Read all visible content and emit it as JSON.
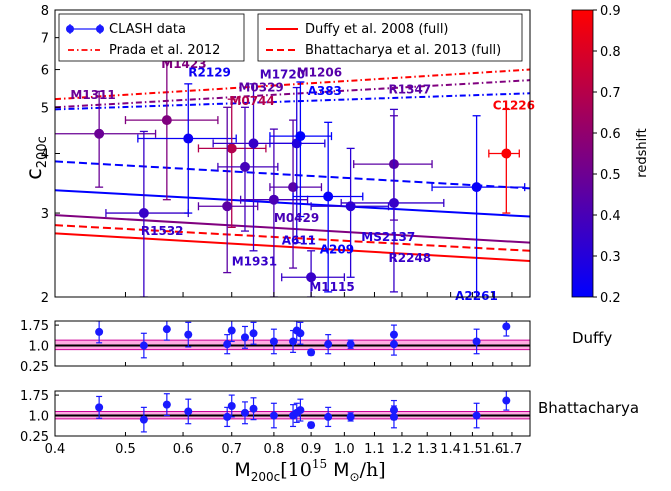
{
  "chart_data": {
    "type": "scatter",
    "x_scale": "log",
    "y_scale": "log",
    "xlim": [
      0.4,
      1.8
    ],
    "main_ylim": [
      2,
      8
    ],
    "xlabel": "M_200c [10^15 M_⊙/h]",
    "xlabel_main": "M",
    "xlabel_sub": "200c",
    "xlabel_unit_pre": "[10",
    "xlabel_unit_exp": "15",
    "xlabel_unit_m": " M",
    "xlabel_unit_sym": "⊙",
    "xlabel_unit_post": "/h]",
    "ylabel_main": "c",
    "ylabel_sub": "200c",
    "x_ticks": [
      "0.4",
      "0.5",
      "0.6",
      "0.7",
      "0.8",
      "0.9",
      "1.0",
      "1.1",
      "1.2",
      "1.3",
      "1.4",
      "1.5",
      "1.6",
      "1.7"
    ],
    "main_y_ticks": [
      "2",
      "3",
      "4",
      "5",
      "6",
      "7",
      "8"
    ],
    "colorbar": {
      "label": "redshift",
      "range": [
        0.2,
        0.9
      ],
      "colormap": [
        "#0000ff",
        "#ff0000"
      ],
      "ticks": [
        "0.2",
        "0.3",
        "0.4",
        "0.5",
        "0.6",
        "0.7",
        "0.8",
        "0.9"
      ]
    },
    "legend": {
      "placement": "top",
      "entries": [
        {
          "label": "CLASH data",
          "style": "marker-errorbar",
          "color": "#1a1aff"
        },
        {
          "label": "Duffy et al. 2008 (full)",
          "style": "solid",
          "color": "#ff0000"
        },
        {
          "label": "Prada et al. 2012",
          "style": "dashdot",
          "color": "#ff0000"
        },
        {
          "label": "Bhattacharya et al. 2013 (full)",
          "style": "dashed",
          "color": "#ff0000"
        }
      ]
    },
    "clusters": [
      {
        "name": "M1311",
        "x": 0.46,
        "y": 4.4,
        "xerr": [
          0.07,
          0.09
        ],
        "yerr": [
          1.0,
          1.0
        ],
        "z": 0.49
      },
      {
        "name": "R1532",
        "x": 0.53,
        "y": 3.0,
        "xerr": [
          0.06,
          0.08
        ],
        "yerr": [
          1.0,
          1.45
        ],
        "z": 0.35
      },
      {
        "name": "M1423",
        "x": 0.57,
        "y": 4.7,
        "xerr": [
          0.07,
          0.1
        ],
        "yerr": [
          1.5,
          1.55
        ],
        "z": 0.55
      },
      {
        "name": "R2129",
        "x": 0.61,
        "y": 4.3,
        "xerr": [
          0.09,
          0.1
        ],
        "yerr": [
          1.3,
          1.3
        ],
        "z": 0.23
      },
      {
        "name": "M0744",
        "x": 0.7,
        "y": 4.1,
        "xerr": [
          0.07,
          0.08
        ],
        "yerr": [
          1.3,
          1.1
        ],
        "z": 0.69
      },
      {
        "name": "M0329",
        "x": 0.69,
        "y": 3.1,
        "xerr": [
          0.06,
          0.07
        ],
        "yerr": [
          0.85,
          1.9
        ],
        "z": 0.45
      },
      {
        "name": "M1720",
        "x": 0.73,
        "y": 3.75,
        "xerr": [
          0.06,
          0.08
        ],
        "yerr": [
          1.0,
          1.25
        ],
        "z": 0.39
      },
      {
        "name": "M1931",
        "x": 0.75,
        "y": 4.2,
        "xerr": [
          0.09,
          0.1
        ],
        "yerr": [
          1.7,
          1.4
        ],
        "z": 0.35
      },
      {
        "name": "M0429",
        "x": 0.8,
        "y": 3.2,
        "xerr": [
          0.08,
          0.09
        ],
        "yerr": [
          1.2,
          1.3
        ],
        "z": 0.4
      },
      {
        "name": "M1206",
        "x": 0.85,
        "y": 3.4,
        "xerr": [
          0.06,
          0.08
        ],
        "yerr": [
          1.1,
          1.3
        ],
        "z": 0.44
      },
      {
        "name": "A611",
        "x": 0.86,
        "y": 4.2,
        "xerr": [
          0.07,
          0.08
        ],
        "yerr": [
          1.6,
          1.3
        ],
        "z": 0.29
      },
      {
        "name": "A383",
        "x": 0.87,
        "y": 4.35,
        "xerr": [
          0.08,
          0.09
        ],
        "yerr": [
          1.4,
          1.3
        ],
        "z": 0.19
      },
      {
        "name": "M1115",
        "x": 0.9,
        "y": 2.2,
        "xerr": [
          0.08,
          0.1
        ],
        "yerr": [
          0.2,
          0.3
        ],
        "z": 0.35
      },
      {
        "name": "A209",
        "x": 0.95,
        "y": 3.25,
        "xerr": [
          0.1,
          0.11
        ],
        "yerr": [
          1.2,
          1.4
        ],
        "z": 0.21
      },
      {
        "name": "MS2137",
        "x": 1.02,
        "y": 3.1,
        "xerr": [
          0.12,
          0.13
        ],
        "yerr": [
          0.9,
          1.0
        ],
        "z": 0.31
      },
      {
        "name": "R1347",
        "x": 1.17,
        "y": 3.8,
        "xerr": [
          0.14,
          0.15
        ],
        "yerr": [
          0.9,
          1.0
        ],
        "z": 0.45
      },
      {
        "name": "R2248",
        "x": 1.17,
        "y": 3.15,
        "xerr": [
          0.18,
          0.2
        ],
        "yerr": [
          1.1,
          1.8
        ],
        "z": 0.35
      },
      {
        "name": "A2261",
        "x": 1.52,
        "y": 3.4,
        "xerr": [
          0.2,
          0.25
        ],
        "yerr": [
          1.4,
          1.4
        ],
        "z": 0.22
      },
      {
        "name": "C1226",
        "x": 1.67,
        "y": 4.0,
        "xerr": [
          0.09,
          0.07
        ],
        "yerr": [
          1.0,
          0.95
        ],
        "z": 0.89
      }
    ],
    "label_offsets_note": "",
    "label_positions": [
      {
        "name": "M1311",
        "x": 0.42,
        "y": 5.2
      },
      {
        "name": "R1532",
        "x": 0.525,
        "y": 2.7
      },
      {
        "name": "M1423",
        "x": 0.56,
        "y": 6.05
      },
      {
        "name": "R2129",
        "x": 0.61,
        "y": 5.8
      },
      {
        "name": "M0744",
        "x": 0.695,
        "y": 5.05
      },
      {
        "name": "M0329",
        "x": 0.715,
        "y": 5.4
      },
      {
        "name": "M1720",
        "x": 0.765,
        "y": 5.75
      },
      {
        "name": "M1931",
        "x": 0.7,
        "y": 2.33
      },
      {
        "name": "M0429",
        "x": 0.8,
        "y": 2.87
      },
      {
        "name": "M1206",
        "x": 0.86,
        "y": 5.8
      },
      {
        "name": "A611",
        "x": 0.82,
        "y": 2.58
      },
      {
        "name": "A383",
        "x": 0.89,
        "y": 5.3
      },
      {
        "name": "M1115",
        "x": 0.895,
        "y": 2.06
      },
      {
        "name": "A209",
        "x": 0.925,
        "y": 2.47
      },
      {
        "name": "MS2137",
        "x": 1.055,
        "y": 2.62
      },
      {
        "name": "R1347",
        "x": 1.15,
        "y": 5.35
      },
      {
        "name": "R2248",
        "x": 1.15,
        "y": 2.37
      },
      {
        "name": "A2261",
        "x": 1.42,
        "y": 1.97
      },
      {
        "name": "C1226",
        "x": 1.6,
        "y": 4.95
      }
    ],
    "models": [
      {
        "label": "Duffy et al. 2008 (full)",
        "style": "solid",
        "z_color": 0.9,
        "x": [
          0.4,
          1.8
        ],
        "y": [
          2.72,
          2.38
        ]
      },
      {
        "label": "Duffy et al. 2008 (full)",
        "style": "solid",
        "z_color": 0.55,
        "x": [
          0.4,
          1.8
        ],
        "y": [
          2.97,
          2.6
        ]
      },
      {
        "label": "Duffy et al. 2008 (full)",
        "style": "solid",
        "z_color": 0.2,
        "x": [
          0.4,
          1.8
        ],
        "y": [
          3.35,
          2.95
        ]
      },
      {
        "label": "Bhattacharya et al. 2013 (full)",
        "style": "dashed",
        "z_color": 0.9,
        "x": [
          0.4,
          1.8
        ],
        "y": [
          2.83,
          2.5
        ]
      },
      {
        "label": "Bhattacharya et al. 2013 (full)",
        "style": "dashed",
        "z_color": 0.2,
        "x": [
          0.4,
          1.8
        ],
        "y": [
          3.85,
          3.38
        ]
      },
      {
        "label": "Prada et al. 2012",
        "style": "dashdot",
        "z_color": 0.9,
        "x": [
          0.4,
          1.8
        ],
        "y": [
          5.2,
          6.0
        ]
      },
      {
        "label": "Prada et al. 2012",
        "style": "dashdot",
        "z_color": 0.55,
        "x": [
          0.4,
          1.8
        ],
        "y": [
          5.0,
          5.7
        ]
      },
      {
        "label": "Prada et al. 2012",
        "style": "dashdot",
        "z_color": 0.2,
        "x": [
          0.4,
          1.8
        ],
        "y": [
          4.95,
          5.35
        ]
      }
    ],
    "residual_panels": [
      {
        "label": "Duffy",
        "ylim": [
          0.25,
          1.9
        ],
        "y_ticks": [
          "1.75",
          "1.0",
          "0.25"
        ],
        "band": [
          0.85,
          1.2
        ],
        "points": [
          {
            "x": 0.46,
            "y": 1.5,
            "err": 0.4
          },
          {
            "x": 0.53,
            "y": 1.0,
            "err": 0.45
          },
          {
            "x": 0.57,
            "y": 1.6,
            "err": 0.4
          },
          {
            "x": 0.61,
            "y": 1.4,
            "err": 0.45
          },
          {
            "x": 0.69,
            "y": 1.05,
            "err": 0.35
          },
          {
            "x": 0.7,
            "y": 1.55,
            "err": 0.4
          },
          {
            "x": 0.73,
            "y": 1.3,
            "err": 0.4
          },
          {
            "x": 0.75,
            "y": 1.45,
            "err": 0.4
          },
          {
            "x": 0.8,
            "y": 1.15,
            "err": 0.45
          },
          {
            "x": 0.85,
            "y": 1.15,
            "err": 0.4
          },
          {
            "x": 0.86,
            "y": 1.55,
            "err": 0.35
          },
          {
            "x": 0.87,
            "y": 1.45,
            "err": 0.4
          },
          {
            "x": 0.9,
            "y": 0.75,
            "err": 0.1
          },
          {
            "x": 0.95,
            "y": 1.05,
            "err": 0.35
          },
          {
            "x": 1.02,
            "y": 1.05,
            "err": 0.15
          },
          {
            "x": 1.17,
            "y": 1.4,
            "err": 0.35
          },
          {
            "x": 1.17,
            "y": 1.05,
            "err": 0.4
          },
          {
            "x": 1.52,
            "y": 1.15,
            "err": 0.45
          },
          {
            "x": 1.67,
            "y": 1.7,
            "err": 0.35
          }
        ]
      },
      {
        "label": "Bhattacharya",
        "ylim": [
          0.25,
          1.9
        ],
        "y_ticks": [
          "1.75",
          "1.0",
          "0.25"
        ],
        "band": [
          0.88,
          1.15
        ],
        "points": [
          {
            "x": 0.46,
            "y": 1.3,
            "err": 0.4
          },
          {
            "x": 0.53,
            "y": 0.85,
            "err": 0.45
          },
          {
            "x": 0.57,
            "y": 1.4,
            "err": 0.4
          },
          {
            "x": 0.61,
            "y": 1.15,
            "err": 0.45
          },
          {
            "x": 0.69,
            "y": 0.95,
            "err": 0.35
          },
          {
            "x": 0.7,
            "y": 1.35,
            "err": 0.4
          },
          {
            "x": 0.73,
            "y": 1.1,
            "err": 0.4
          },
          {
            "x": 0.75,
            "y": 1.25,
            "err": 0.4
          },
          {
            "x": 0.8,
            "y": 1.0,
            "err": 0.45
          },
          {
            "x": 0.85,
            "y": 1.0,
            "err": 0.4
          },
          {
            "x": 0.86,
            "y": 1.1,
            "err": 0.35
          },
          {
            "x": 0.87,
            "y": 1.2,
            "err": 0.4
          },
          {
            "x": 0.9,
            "y": 0.65,
            "err": 0.1
          },
          {
            "x": 0.95,
            "y": 0.95,
            "err": 0.35
          },
          {
            "x": 1.02,
            "y": 0.95,
            "err": 0.15
          },
          {
            "x": 1.17,
            "y": 1.2,
            "err": 0.35
          },
          {
            "x": 1.17,
            "y": 0.95,
            "err": 0.4
          },
          {
            "x": 1.52,
            "y": 1.0,
            "err": 0.45
          },
          {
            "x": 1.67,
            "y": 1.55,
            "err": 0.35
          }
        ]
      }
    ],
    "colors": {
      "band": "#ff66cc",
      "band_line": "#cc0099",
      "ref_line": "#000000",
      "residual_point": "#1a1aff",
      "frame": "#000000"
    }
  }
}
